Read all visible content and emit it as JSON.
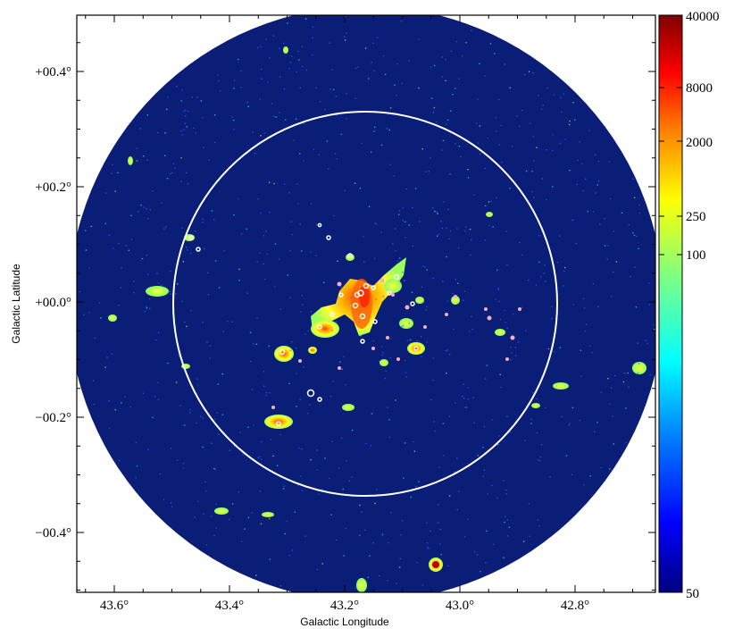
{
  "axes": {
    "xlabel": "Galactic Longitude",
    "ylabel": "Galactic Latitude",
    "x_ticks": [
      "43.6°",
      "43.4°",
      "43.2°",
      "43.0°",
      "42.8°"
    ],
    "y_ticks": [
      "+00.4°",
      "+00.2°",
      "+00.0°",
      "−00.2°",
      "−00.4°"
    ]
  },
  "colorbar": {
    "labels": [
      "40000",
      "8000",
      "2000",
      "250",
      "100",
      "50"
    ],
    "colors": [
      "#7f0000",
      "#ff0000",
      "#ff8000",
      "#ffff00",
      "#80ff80",
      "#00ffff",
      "#0080ff",
      "#0000ff",
      "#000080"
    ]
  },
  "map": {
    "background_color": "#0a1e78",
    "circle_color": "#ffffff"
  }
}
